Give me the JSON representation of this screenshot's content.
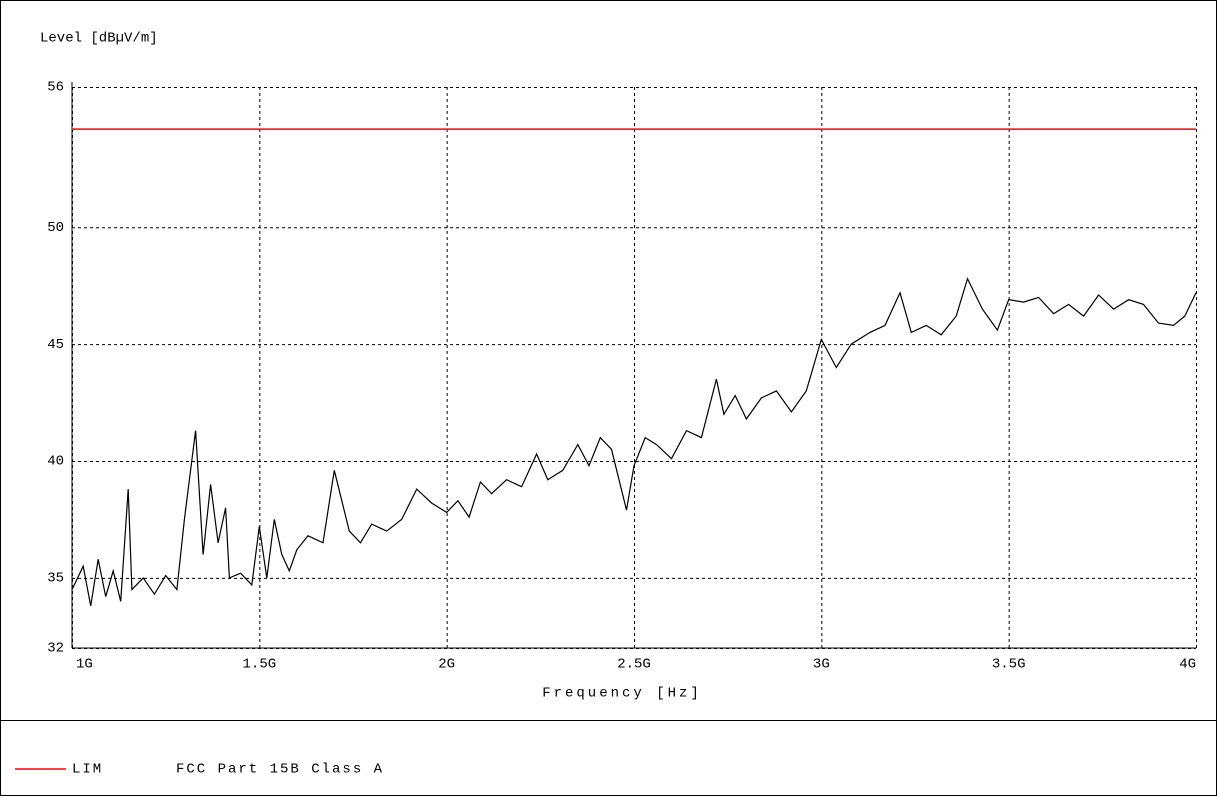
{
  "chart_data": {
    "type": "line",
    "y_axis_label": "Level [dBµV/m]",
    "x_axis_label": "Frequency [Hz]",
    "x": [
      1.0,
      1.03,
      1.05,
      1.07,
      1.09,
      1.11,
      1.13,
      1.15,
      1.16,
      1.19,
      1.22,
      1.25,
      1.28,
      1.3,
      1.33,
      1.35,
      1.37,
      1.39,
      1.41,
      1.42,
      1.45,
      1.48,
      1.5,
      1.52,
      1.54,
      1.56,
      1.58,
      1.6,
      1.63,
      1.67,
      1.7,
      1.74,
      1.77,
      1.8,
      1.84,
      1.88,
      1.92,
      1.96,
      2.0,
      2.03,
      2.06,
      2.09,
      2.12,
      2.16,
      2.2,
      2.24,
      2.27,
      2.31,
      2.35,
      2.38,
      2.41,
      2.44,
      2.46,
      2.48,
      2.5,
      2.53,
      2.56,
      2.6,
      2.64,
      2.68,
      2.72,
      2.74,
      2.77,
      2.8,
      2.84,
      2.88,
      2.92,
      2.96,
      3.0,
      3.04,
      3.08,
      3.13,
      3.17,
      3.21,
      3.24,
      3.28,
      3.32,
      3.36,
      3.39,
      3.43,
      3.47,
      3.5,
      3.54,
      3.58,
      3.62,
      3.66,
      3.7,
      3.74,
      3.78,
      3.82,
      3.86,
      3.9,
      3.94,
      3.97,
      4.0
    ],
    "values": [
      34.5,
      35.5,
      33.8,
      35.8,
      34.2,
      35.3,
      34.0,
      38.8,
      34.5,
      35.0,
      34.3,
      35.1,
      34.5,
      37.5,
      41.3,
      36.0,
      39.0,
      36.5,
      38.0,
      35.0,
      35.2,
      34.7,
      37.2,
      35.0,
      37.5,
      36.0,
      35.3,
      36.2,
      36.8,
      36.5,
      39.6,
      37.0,
      36.5,
      37.3,
      37.0,
      37.5,
      38.8,
      38.2,
      37.8,
      38.3,
      37.6,
      39.1,
      38.6,
      39.2,
      38.9,
      40.3,
      39.2,
      39.6,
      40.7,
      39.8,
      41.0,
      40.5,
      39.2,
      37.9,
      39.8,
      41.0,
      40.7,
      40.1,
      41.3,
      41.0,
      43.5,
      42.0,
      42.8,
      41.8,
      42.7,
      43.0,
      42.1,
      43.0,
      45.2,
      44.0,
      45.0,
      45.5,
      45.8,
      47.2,
      45.5,
      45.8,
      45.4,
      46.2,
      47.8,
      46.5,
      45.6,
      46.9,
      46.8,
      47.0,
      46.3,
      46.7,
      46.2,
      47.1,
      46.5,
      46.9,
      46.7,
      45.9,
      45.8,
      46.2,
      47.2
    ],
    "color": "#000000",
    "limit_line": {
      "name": "LIM",
      "label": "FCC Part 15B Class A",
      "value": 54.2,
      "color": "#ff0000"
    },
    "xlim": [
      1,
      4
    ],
    "xticks": [
      {
        "value": 1,
        "label": "1G"
      },
      {
        "value": 1.5,
        "label": "1.5G"
      },
      {
        "value": 2,
        "label": "2G"
      },
      {
        "value": 2.5,
        "label": "2.5G"
      },
      {
        "value": 3,
        "label": "3G"
      },
      {
        "value": 3.5,
        "label": "3.5G"
      },
      {
        "value": 4,
        "label": "4G"
      }
    ],
    "ylim": [
      32,
      56
    ],
    "yticks": [
      32,
      35,
      40,
      45,
      50,
      56
    ],
    "grid": true
  }
}
